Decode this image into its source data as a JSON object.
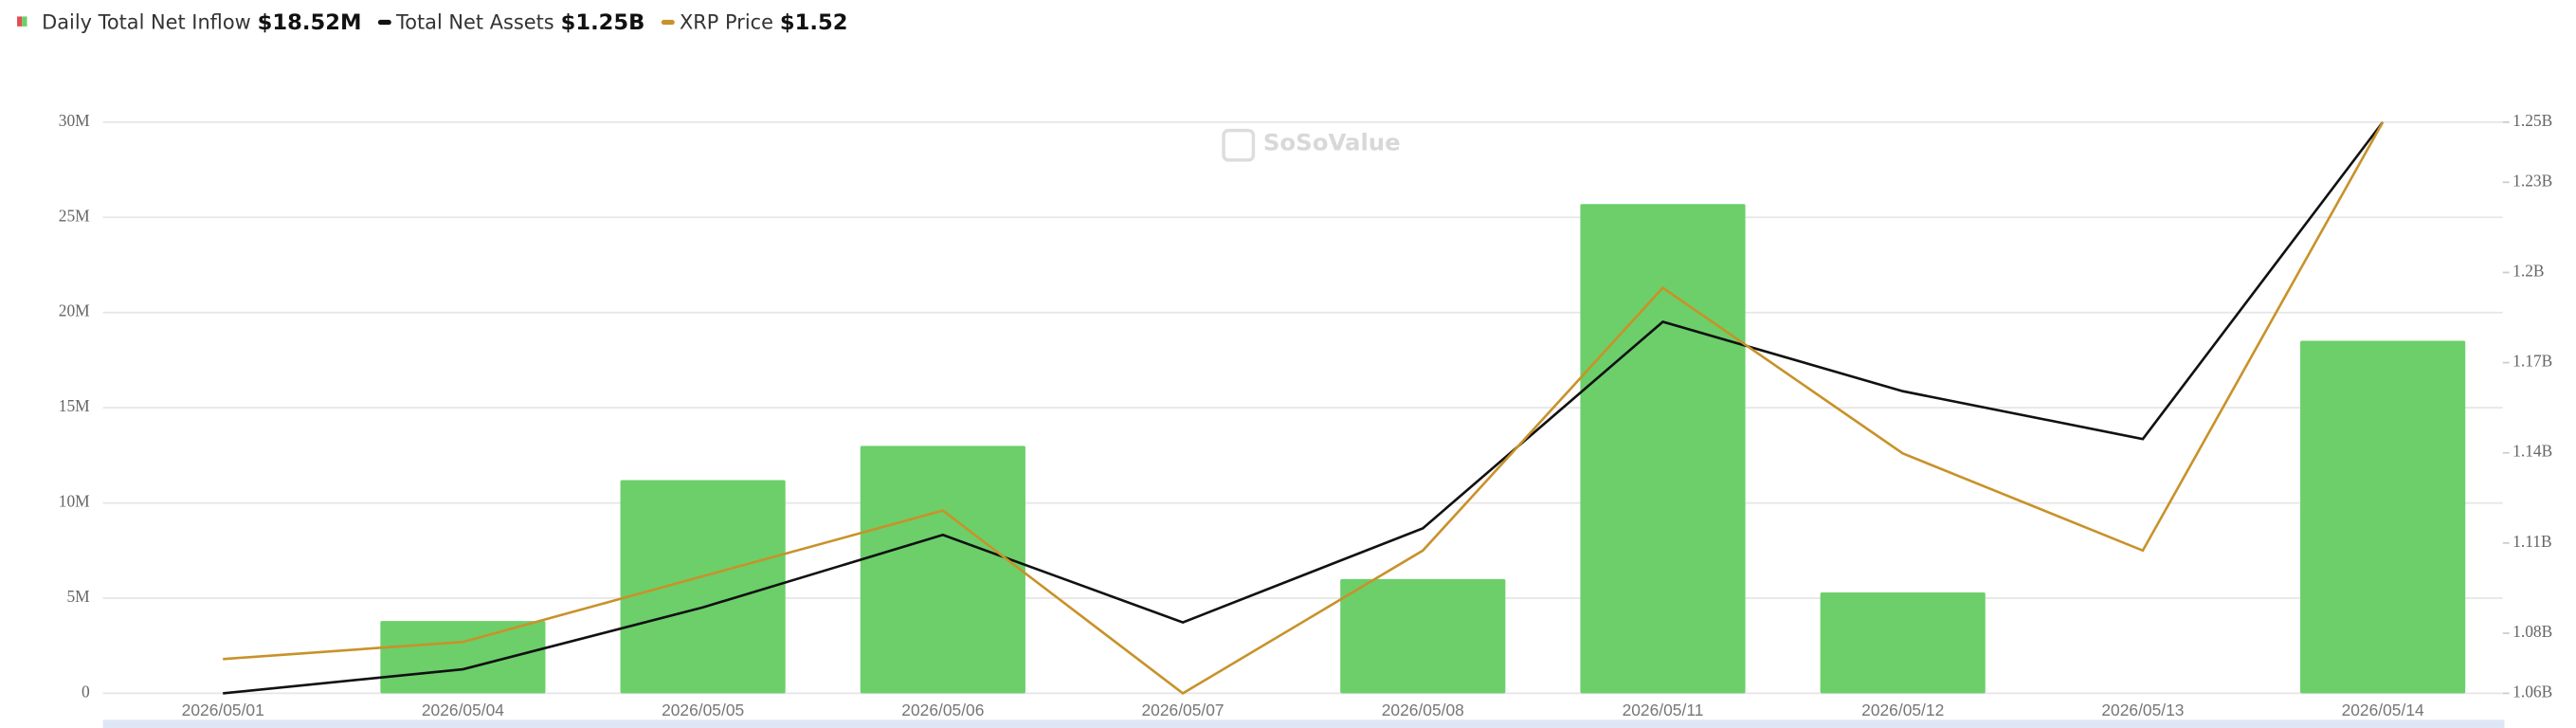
{
  "chart_data": {
    "type": "combo",
    "watermark": "SoSoValue",
    "categories": [
      "2026/05/01",
      "2026/05/04",
      "2026/05/05",
      "2026/05/06",
      "2026/05/07",
      "2026/05/08",
      "2026/05/11",
      "2026/05/12",
      "2026/05/13",
      "2026/05/14"
    ],
    "series": [
      {
        "name": "Daily Total Net Inflow",
        "type": "bar",
        "axis": "y",
        "color": "#6ccf6a",
        "current_label": "$18.52M",
        "values": [
          0,
          3800000,
          11200000,
          13000000,
          0,
          6000000,
          25700000,
          5300000,
          0,
          18520000
        ]
      },
      {
        "name": "Total Net Assets",
        "type": "line",
        "axis": "y2",
        "color": "#111111",
        "current_label": "$1.25B",
        "values": [
          1060000000,
          1068000000,
          1088600000,
          1112700000,
          1083600000,
          1114900000,
          1183600000,
          1160500000,
          1144600000,
          1250000000
        ]
      },
      {
        "name": "XRP Price",
        "type": "line",
        "axis": "none",
        "color": "#c8922a",
        "current_label": "$1.52",
        "values": [
          1.332,
          1.338,
          1.361,
          1.384,
          1.32,
          1.37,
          1.462,
          1.404,
          1.37,
          1.52
        ]
      }
    ],
    "ylim": [
      0,
      30000000
    ],
    "yticks": [
      {
        "value": 0,
        "label": "0"
      },
      {
        "value": 5000000,
        "label": "5M"
      },
      {
        "value": 10000000,
        "label": "10M"
      },
      {
        "value": 15000000,
        "label": "15M"
      },
      {
        "value": 20000000,
        "label": "20M"
      },
      {
        "value": 25000000,
        "label": "25M"
      },
      {
        "value": 30000000,
        "label": "30M"
      }
    ],
    "y2lim": [
      1060000000,
      1250000000
    ],
    "y2ticks": [
      {
        "value": 1060000000,
        "label": "1.06B"
      },
      {
        "value": 1080000000,
        "label": "1.08B"
      },
      {
        "value": 1110000000,
        "label": "1.11B"
      },
      {
        "value": 1140000000,
        "label": "1.14B"
      },
      {
        "value": 1170000000,
        "label": "1.17B"
      },
      {
        "value": 1200000000,
        "label": "1.2B"
      },
      {
        "value": 1230000000,
        "label": "1.23B"
      },
      {
        "value": 1250000000,
        "label": "1.25B"
      }
    ],
    "grid": true
  }
}
